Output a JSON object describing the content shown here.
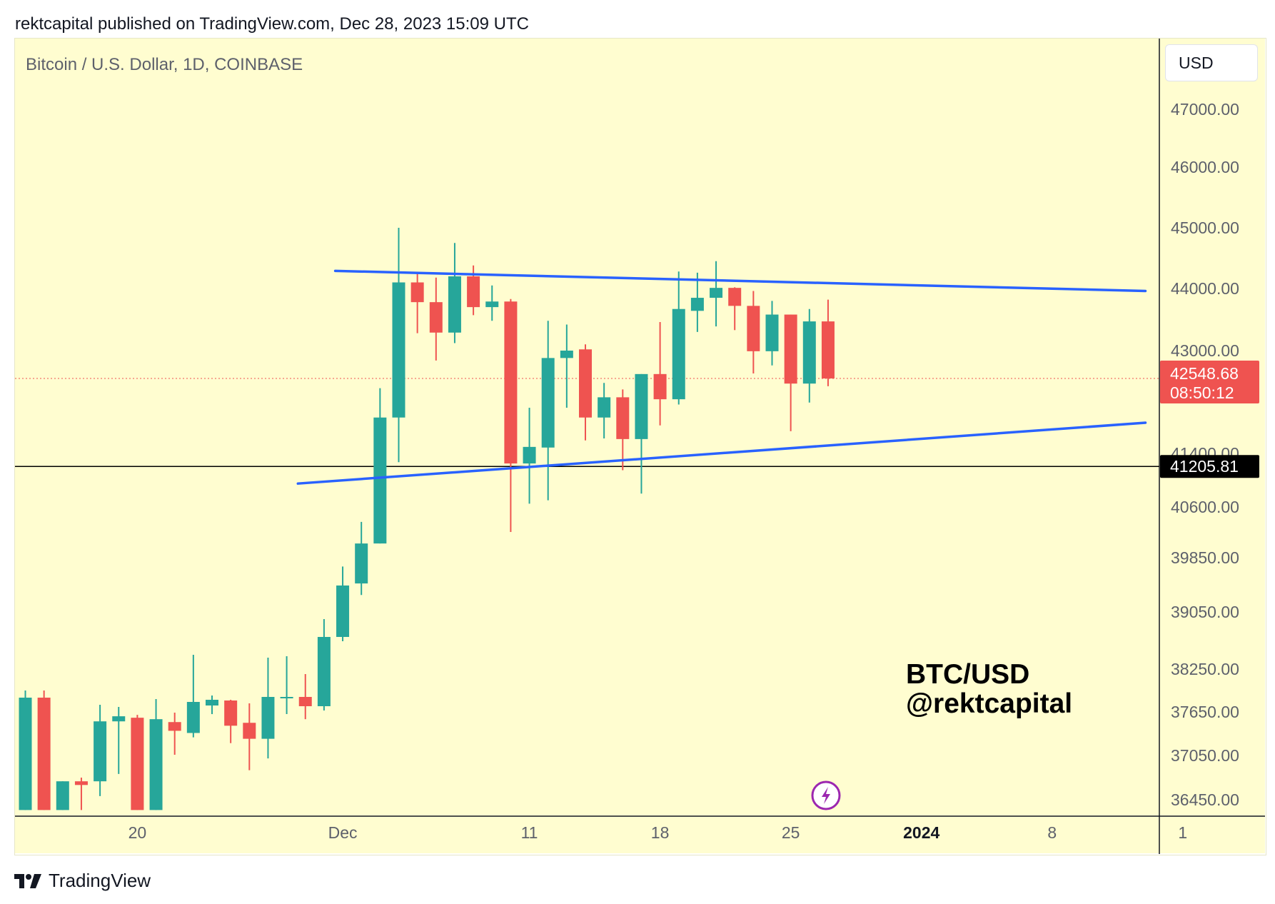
{
  "header": {
    "published": "rektcapital published on TradingView.com, Dec 28, 2023 15:09 UTC"
  },
  "symbol": {
    "title": "Bitcoin / U.S. Dollar, 1D, COINBASE"
  },
  "toolbar": {
    "currency_label": "USD"
  },
  "watermark": {
    "line1": "BTC/USD",
    "line2": "@rektcapital"
  },
  "footer": {
    "brand": "TradingView"
  },
  "colors": {
    "background": "#fffdd0",
    "up": "#26a69a",
    "down": "#ef5350",
    "trendline": "#2962ff",
    "support": "#000000",
    "price_label": "#ef5350",
    "lightning": "#9c27b0"
  },
  "chart_data": {
    "type": "candlestick",
    "title": "Bitcoin / U.S. Dollar, 1D, COINBASE",
    "xlabel": "",
    "ylabel": "",
    "ylim": [
      36200,
      47700
    ],
    "y_ticks": [
      "47000.00",
      "46000.00",
      "45000.00",
      "44000.00",
      "43000.00",
      "41400.00",
      "40600.00",
      "39850.00",
      "39050.00",
      "38250.00",
      "37650.00",
      "37050.00",
      "36450.00"
    ],
    "y_tick_values": [
      47000,
      46000,
      45000,
      44000,
      43000,
      41400,
      40600,
      39850,
      39050,
      38250,
      37650,
      37050,
      36450
    ],
    "x_ticks": [
      {
        "label": "20",
        "day": 20,
        "bold": false
      },
      {
        "label": "Dec",
        "day": 31,
        "bold": false
      },
      {
        "label": "11",
        "day": 41,
        "bold": false
      },
      {
        "label": "18",
        "day": 48,
        "bold": false
      },
      {
        "label": "25",
        "day": 55,
        "bold": false
      },
      {
        "label": "2024",
        "day": 62,
        "bold": true
      },
      {
        "label": "8",
        "day": 69,
        "bold": false
      },
      {
        "label": "1",
        "day": 76,
        "bold": false
      }
    ],
    "candles": [
      {
        "day": 14,
        "o": 36300,
        "h": 37950,
        "l": 36300,
        "c": 37850
      },
      {
        "day": 15,
        "o": 37850,
        "h": 37950,
        "l": 36300,
        "c": 36300
      },
      {
        "day": 16,
        "o": 36300,
        "h": 36700,
        "l": 36300,
        "c": 36700
      },
      {
        "day": 17,
        "o": 36700,
        "h": 36750,
        "l": 36300,
        "c": 36650
      },
      {
        "day": 18,
        "o": 36700,
        "h": 37750,
        "l": 36500,
        "c": 37520
      },
      {
        "day": 19,
        "o": 37520,
        "h": 37720,
        "l": 36800,
        "c": 37590
      },
      {
        "day": 20,
        "o": 37570,
        "h": 37610,
        "l": 36300,
        "c": 36300
      },
      {
        "day": 21,
        "o": 36300,
        "h": 37830,
        "l": 36300,
        "c": 37550
      },
      {
        "day": 22,
        "o": 37510,
        "h": 37640,
        "l": 37060,
        "c": 37390
      },
      {
        "day": 23,
        "o": 37360,
        "h": 38450,
        "l": 37300,
        "c": 37790
      },
      {
        "day": 24,
        "o": 37740,
        "h": 37880,
        "l": 37620,
        "c": 37820
      },
      {
        "day": 25,
        "o": 37810,
        "h": 37820,
        "l": 37220,
        "c": 37460
      },
      {
        "day": 26,
        "o": 37500,
        "h": 37770,
        "l": 36850,
        "c": 37280
      },
      {
        "day": 27,
        "o": 37280,
        "h": 38410,
        "l": 37010,
        "c": 37860
      },
      {
        "day": 28,
        "o": 37860,
        "h": 38430,
        "l": 37620,
        "c": 37860
      },
      {
        "day": 29,
        "o": 37860,
        "h": 38180,
        "l": 37550,
        "c": 37730
      },
      {
        "day": 30,
        "o": 37730,
        "h": 38950,
        "l": 37670,
        "c": 38700
      },
      {
        "day": 31,
        "o": 38700,
        "h": 39720,
        "l": 38640,
        "c": 39440
      },
      {
        "day": 32,
        "o": 39470,
        "h": 40380,
        "l": 39300,
        "c": 40060
      },
      {
        "day": 33,
        "o": 40060,
        "h": 42400,
        "l": 40060,
        "c": 41950
      },
      {
        "day": 34,
        "o": 41950,
        "h": 45000,
        "l": 41270,
        "c": 44100
      },
      {
        "day": 35,
        "o": 44100,
        "h": 44250,
        "l": 43280,
        "c": 43780
      },
      {
        "day": 36,
        "o": 43780,
        "h": 44180,
        "l": 42840,
        "c": 43290
      },
      {
        "day": 37,
        "o": 43290,
        "h": 44750,
        "l": 43120,
        "c": 44200
      },
      {
        "day": 38,
        "o": 44200,
        "h": 44380,
        "l": 43570,
        "c": 43700
      },
      {
        "day": 39,
        "o": 43700,
        "h": 44050,
        "l": 43480,
        "c": 43790
      },
      {
        "day": 40,
        "o": 43790,
        "h": 43830,
        "l": 40230,
        "c": 41250
      },
      {
        "day": 41,
        "o": 41250,
        "h": 42100,
        "l": 40650,
        "c": 41500
      },
      {
        "day": 42,
        "o": 41490,
        "h": 43480,
        "l": 40700,
        "c": 42880
      },
      {
        "day": 43,
        "o": 42880,
        "h": 43420,
        "l": 42100,
        "c": 43000
      },
      {
        "day": 44,
        "o": 43020,
        "h": 43100,
        "l": 41600,
        "c": 41950
      },
      {
        "day": 45,
        "o": 41950,
        "h": 42480,
        "l": 41630,
        "c": 42260
      },
      {
        "day": 46,
        "o": 42260,
        "h": 42380,
        "l": 41150,
        "c": 41620
      },
      {
        "day": 47,
        "o": 41620,
        "h": 42620,
        "l": 40800,
        "c": 42620
      },
      {
        "day": 48,
        "o": 42620,
        "h": 43460,
        "l": 41830,
        "c": 42230
      },
      {
        "day": 49,
        "o": 42230,
        "h": 44280,
        "l": 42150,
        "c": 43670
      },
      {
        "day": 50,
        "o": 43640,
        "h": 44260,
        "l": 43300,
        "c": 43850
      },
      {
        "day": 51,
        "o": 43850,
        "h": 44450,
        "l": 43390,
        "c": 44010
      },
      {
        "day": 52,
        "o": 44010,
        "h": 44020,
        "l": 43330,
        "c": 43720
      },
      {
        "day": 53,
        "o": 43720,
        "h": 43960,
        "l": 42630,
        "c": 42990
      },
      {
        "day": 54,
        "o": 42990,
        "h": 43800,
        "l": 42760,
        "c": 43580
      },
      {
        "day": 55,
        "o": 43580,
        "h": 43580,
        "l": 41740,
        "c": 42470
      },
      {
        "day": 56,
        "o": 42470,
        "h": 43670,
        "l": 42180,
        "c": 43470
      },
      {
        "day": 57,
        "o": 43470,
        "h": 43820,
        "l": 42430,
        "c": 42548.68
      }
    ],
    "trendlines": [
      {
        "name": "resistance",
        "x1": 30.6,
        "y1": 44290,
        "x2": 74.0,
        "y2": 43960
      },
      {
        "name": "support",
        "x1": 28.6,
        "y1": 40950,
        "x2": 74.0,
        "y2": 41870
      }
    ],
    "horizontal_lines": [
      {
        "name": "support-level",
        "value": 41205.81,
        "label": "41205.81"
      }
    ],
    "current_price": {
      "value": 42548.68,
      "label": "42548.68",
      "countdown": "08:50:12"
    },
    "x_domain": [
      13.4,
      76.4
    ]
  }
}
